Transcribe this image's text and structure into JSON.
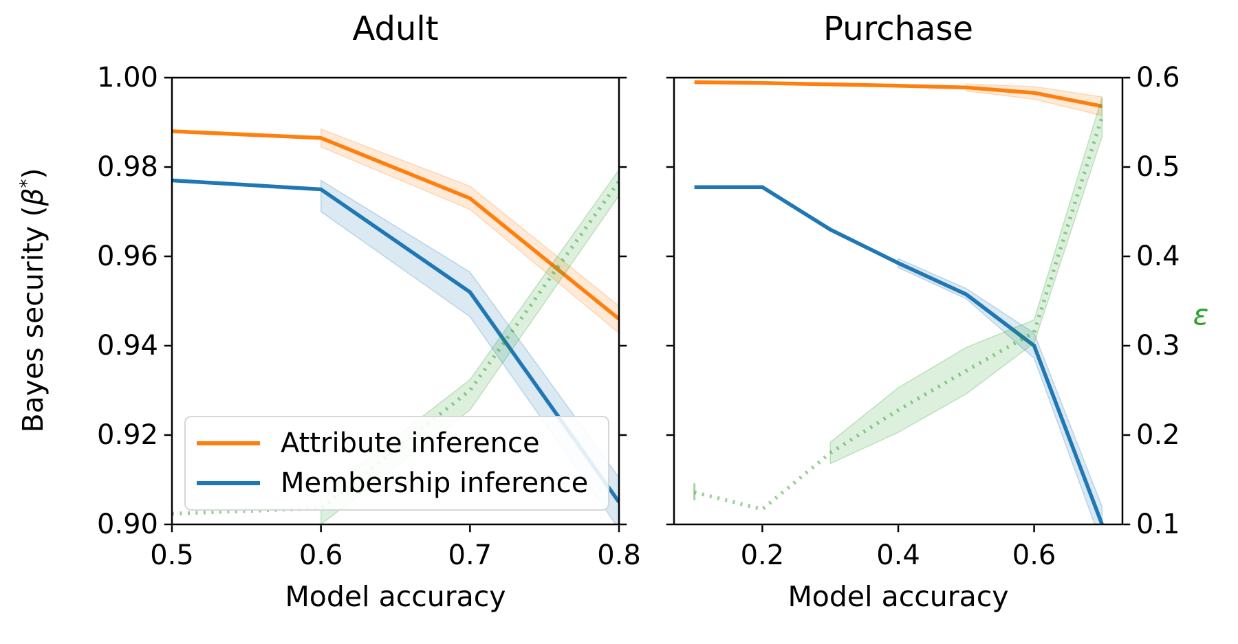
{
  "figure": {
    "xlabel": "Model accuracy",
    "ylabel": {
      "prefix": "Bayes security (",
      "beta": "β",
      "sup": "*",
      "suffix": ")"
    },
    "epsilon_label": "ε",
    "colors": {
      "attribute": "#ff7f0e",
      "membership": "#1f77b4",
      "epsilon": "#2ca02c",
      "spine": "#000000"
    },
    "legend": {
      "items": [
        {
          "label": "Attribute inference",
          "color": "#ff7f0e"
        },
        {
          "label": "Membership inference",
          "color": "#1f77b4"
        }
      ]
    }
  },
  "chart_data": [
    {
      "type": "line",
      "title": "Adult",
      "xlabel": "Model accuracy",
      "ylabel_left": "Bayes security (β*)",
      "ylabel_right": "ε",
      "xlim": [
        0.5,
        0.8
      ],
      "xticks": [
        "0.5",
        "0.6",
        "0.7",
        "0.8"
      ],
      "xtick_values": [
        0.5,
        0.6,
        0.7,
        0.8
      ],
      "ylim_left": [
        0.9,
        1.0
      ],
      "yticks_left": [
        "1.00",
        "0.98",
        "0.96",
        "0.94",
        "0.92",
        "0.90"
      ],
      "ytick_values_left": [
        1.0,
        0.98,
        0.96,
        0.94,
        0.92,
        0.9
      ],
      "ylim_right": [
        0.1,
        0.6
      ],
      "yticks_right": [
        "",
        "",
        "",
        "",
        "",
        ""
      ],
      "grid": false,
      "legend_position": "lower left",
      "series": [
        {
          "name": "Attribute inference",
          "axis": "left",
          "color": "#ff7f0e",
          "style": "solid",
          "x": [
            0.5,
            0.6,
            0.7,
            0.8
          ],
          "y": [
            0.988,
            0.9865,
            0.973,
            0.946
          ],
          "band": {
            "x": [
              0.6,
              0.7,
              0.8
            ],
            "lo": [
              0.9845,
              0.9705,
              0.9428
            ],
            "hi": [
              0.9885,
              0.9757,
              0.9489
            ]
          }
        },
        {
          "name": "Membership inference",
          "axis": "left",
          "color": "#1f77b4",
          "style": "solid",
          "x": [
            0.5,
            0.6,
            0.7,
            0.8
          ],
          "y": [
            0.977,
            0.975,
            0.952,
            0.905
          ],
          "band": {
            "x": [
              0.6,
              0.7,
              0.8
            ],
            "lo": [
              0.97,
              0.9465,
              0.899
            ],
            "hi": [
              0.977,
              0.9565,
              0.9105
            ]
          }
        },
        {
          "name": "ε",
          "axis": "right",
          "color": "#2ca02c",
          "style": "dotted",
          "x": [
            0.5,
            0.6,
            0.7,
            0.8
          ],
          "y": [
            0.112,
            0.118,
            0.25,
            0.484
          ],
          "band": {
            "x": [
              0.6,
              0.7,
              0.8
            ],
            "lo": [
              0.1,
              0.228,
              0.468
            ],
            "hi": [
              0.133,
              0.262,
              0.497
            ]
          }
        }
      ]
    },
    {
      "type": "line",
      "title": "Purchase",
      "xlabel": "Model accuracy",
      "ylabel_left": "Bayes security (β*)",
      "ylabel_right": "ε",
      "xlim": [
        0.07,
        0.73
      ],
      "xticks": [
        "0.2",
        "0.4",
        "0.6"
      ],
      "xtick_values": [
        0.2,
        0.4,
        0.6
      ],
      "ylim_left": [
        0.9,
        1.0
      ],
      "yticks_left": [
        "",
        "",
        "",
        "",
        "",
        ""
      ],
      "ytick_values_left": [
        1.0,
        0.98,
        0.96,
        0.94,
        0.92,
        0.9
      ],
      "ylim_right": [
        0.1,
        0.6
      ],
      "yticks_right": [
        "0.6",
        "0.5",
        "0.4",
        "0.3",
        "0.2",
        "0.1"
      ],
      "grid": false,
      "legend_position": "none",
      "series": [
        {
          "name": "Attribute inference",
          "axis": "left",
          "color": "#ff7f0e",
          "style": "solid",
          "x": [
            0.1,
            0.2,
            0.3,
            0.4,
            0.5,
            0.6,
            0.7
          ],
          "y": [
            0.999,
            0.9988,
            0.9985,
            0.9982,
            0.9978,
            0.9966,
            0.9936
          ],
          "band": {
            "x": [
              0.5,
              0.6,
              0.7
            ],
            "lo": [
              0.997,
              0.9952,
              0.9915
            ],
            "hi": [
              0.9986,
              0.998,
              0.9957
            ]
          }
        },
        {
          "name": "Membership inference",
          "axis": "left",
          "color": "#1f77b4",
          "style": "solid",
          "x": [
            0.1,
            0.2,
            0.3,
            0.4,
            0.5,
            0.6,
            0.7
          ],
          "y": [
            0.9755,
            0.9755,
            0.966,
            0.9585,
            0.9515,
            0.94,
            0.9
          ],
          "band": {
            "x": [
              0.4,
              0.5,
              0.6,
              0.7
            ],
            "lo": [
              0.9575,
              0.9505,
              0.9372,
              0.8955
            ],
            "hi": [
              0.9595,
              0.9528,
              0.9428,
              0.904
            ]
          }
        },
        {
          "name": "ε",
          "axis": "right",
          "color": "#2ca02c",
          "style": "dotted",
          "x": [
            0.1,
            0.2,
            0.3,
            0.4,
            0.5,
            0.6,
            0.7
          ],
          "y": [
            0.136,
            0.117,
            0.18,
            0.228,
            0.272,
            0.315,
            0.556
          ],
          "band": {
            "x": [
              0.3,
              0.4,
              0.5,
              0.6,
              0.7
            ],
            "lo": [
              0.168,
              0.203,
              0.246,
              0.303,
              0.534
            ],
            "hi": [
              0.192,
              0.253,
              0.298,
              0.329,
              0.578
            ]
          },
          "errorbar": {
            "x": 0.1,
            "lo": 0.127,
            "hi": 0.146
          }
        }
      ]
    }
  ]
}
